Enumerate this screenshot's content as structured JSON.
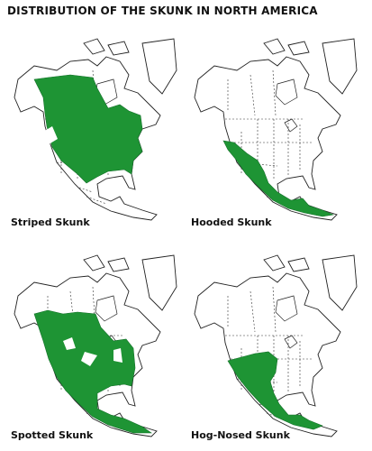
{
  "title": "DISTRIBUTION OF THE SKUNK IN NORTH AMERICA",
  "maps": [
    {
      "label": "Striped Skunk"
    },
    {
      "label": "Hooded Skunk"
    },
    {
      "label": "Spotted Skunk"
    },
    {
      "label": "Hog-Nosed Skunk"
    }
  ]
}
